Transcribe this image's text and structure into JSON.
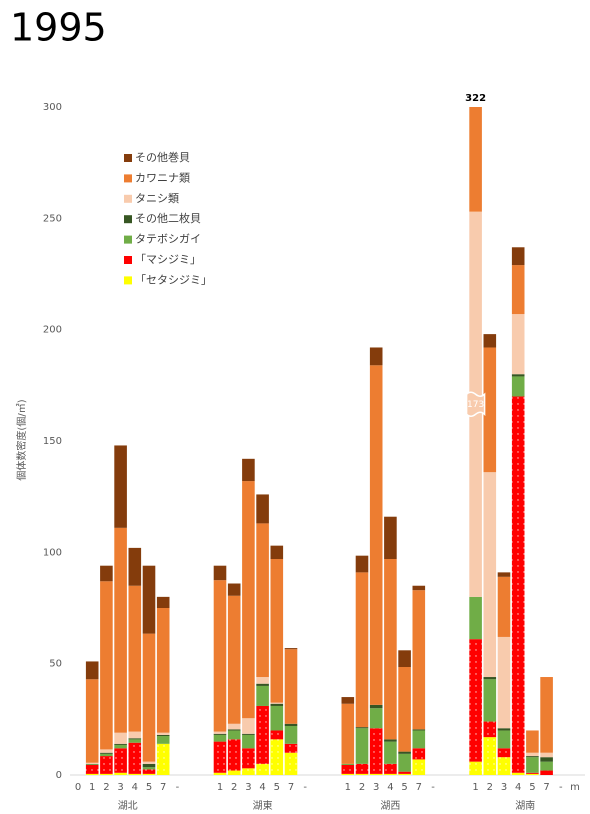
{
  "chart_data": {
    "type": "stacked_bar",
    "title": "1995",
    "y_label": "個体数密度(個/㎡)",
    "ylim": [
      0,
      300
    ],
    "yticks": [
      0,
      50,
      100,
      150,
      200,
      250,
      300
    ],
    "groups": [
      {
        "name": "湖北",
        "categories": [
          "0",
          "1",
          "2",
          "3",
          "4",
          "5",
          "7",
          "-"
        ]
      },
      {
        "name": "湖東",
        "categories": [
          "1",
          "2",
          "3",
          "4",
          "5",
          "7",
          "-"
        ]
      },
      {
        "name": "湖西",
        "categories": [
          "1",
          "2",
          "3",
          "4",
          "5",
          "7",
          "-"
        ]
      },
      {
        "name": "湖南",
        "categories": [
          "1",
          "2",
          "3",
          "4",
          "5",
          "7",
          "-",
          "m"
        ]
      }
    ],
    "series": [
      {
        "name": "その他巻貝",
        "color": "#843c0c",
        "values": [
          null,
          8,
          7,
          37,
          17,
          30.5,
          5,
          null,
          6.5,
          5.5,
          10,
          13,
          6,
          0.5,
          null,
          3,
          7.5,
          8,
          19,
          7.5,
          2,
          null,
          1,
          6,
          2,
          8,
          0,
          0,
          null,
          null
        ]
      },
      {
        "name": "カワニナ類",
        "color": "#ed7d31",
        "values": [
          null,
          37.5,
          75.5,
          92,
          65.5,
          57.5,
          56,
          null,
          68,
          57.5,
          106.5,
          69,
          64.5,
          33.5,
          null,
          27,
          69.5,
          152.5,
          81,
          38,
          62.5,
          null,
          68,
          56,
          27,
          22,
          10,
          34,
          null,
          null
        ]
      },
      {
        "name": "タニシ類",
        "color": "#f8cbad",
        "values": [
          null,
          0.5,
          1.5,
          5,
          3,
          1,
          1,
          null,
          1,
          2.5,
          7,
          3,
          0.5,
          0,
          null,
          0,
          0,
          0,
          0,
          0,
          0,
          null,
          173,
          92,
          41,
          27,
          1.5,
          2,
          null,
          null
        ],
        "value_labels": [
          null,
          null,
          null,
          null,
          null,
          null,
          null,
          null,
          null,
          null,
          null,
          null,
          null,
          null,
          null,
          null,
          null,
          null,
          null,
          null,
          null,
          null,
          "173",
          null,
          null,
          null,
          null,
          null,
          null,
          null
        ]
      },
      {
        "name": "その他二枚貝",
        "color": "#375623",
        "values": [
          null,
          0.2,
          0.5,
          0.5,
          0.5,
          1.5,
          0.5,
          null,
          0.5,
          0.5,
          0.5,
          1,
          1,
          1,
          null,
          0,
          0.5,
          1.5,
          1,
          1,
          0.5,
          null,
          0,
          1,
          1,
          1,
          0.5,
          2,
          null,
          null
        ]
      },
      {
        "name": "タテボシガイ",
        "color": "#70ad47",
        "values": [
          null,
          0.3,
          1,
          1.5,
          1.5,
          1,
          3.5,
          null,
          3,
          4,
          6,
          9,
          11,
          8,
          null,
          0.5,
          16,
          9,
          10,
          8,
          8,
          null,
          19,
          19,
          8,
          9,
          7,
          4,
          null,
          null
        ]
      },
      {
        "name": "「マシジミ」",
        "color": "#ff0000",
        "pattern": "dots",
        "values": [
          null,
          4,
          8,
          11,
          14,
          2,
          0,
          null,
          14,
          14,
          9,
          26,
          4,
          4,
          null,
          4,
          4.5,
          20.5,
          4.5,
          1,
          5,
          null,
          55,
          7,
          4,
          169,
          0.5,
          2,
          null,
          null
        ]
      },
      {
        "name": "「セタシジミ」",
        "color": "#ffff00",
        "pattern": "dots",
        "values": [
          null,
          0.5,
          0.5,
          1,
          0.5,
          0.5,
          14,
          null,
          1,
          2,
          3,
          5,
          16,
          10,
          null,
          0.5,
          0.5,
          0.5,
          0.5,
          0.5,
          7,
          null,
          6,
          17,
          8,
          1,
          0.5,
          0,
          null,
          null
        ]
      }
    ],
    "annotations": [
      {
        "text": "322",
        "category_index": 22
      }
    ]
  }
}
